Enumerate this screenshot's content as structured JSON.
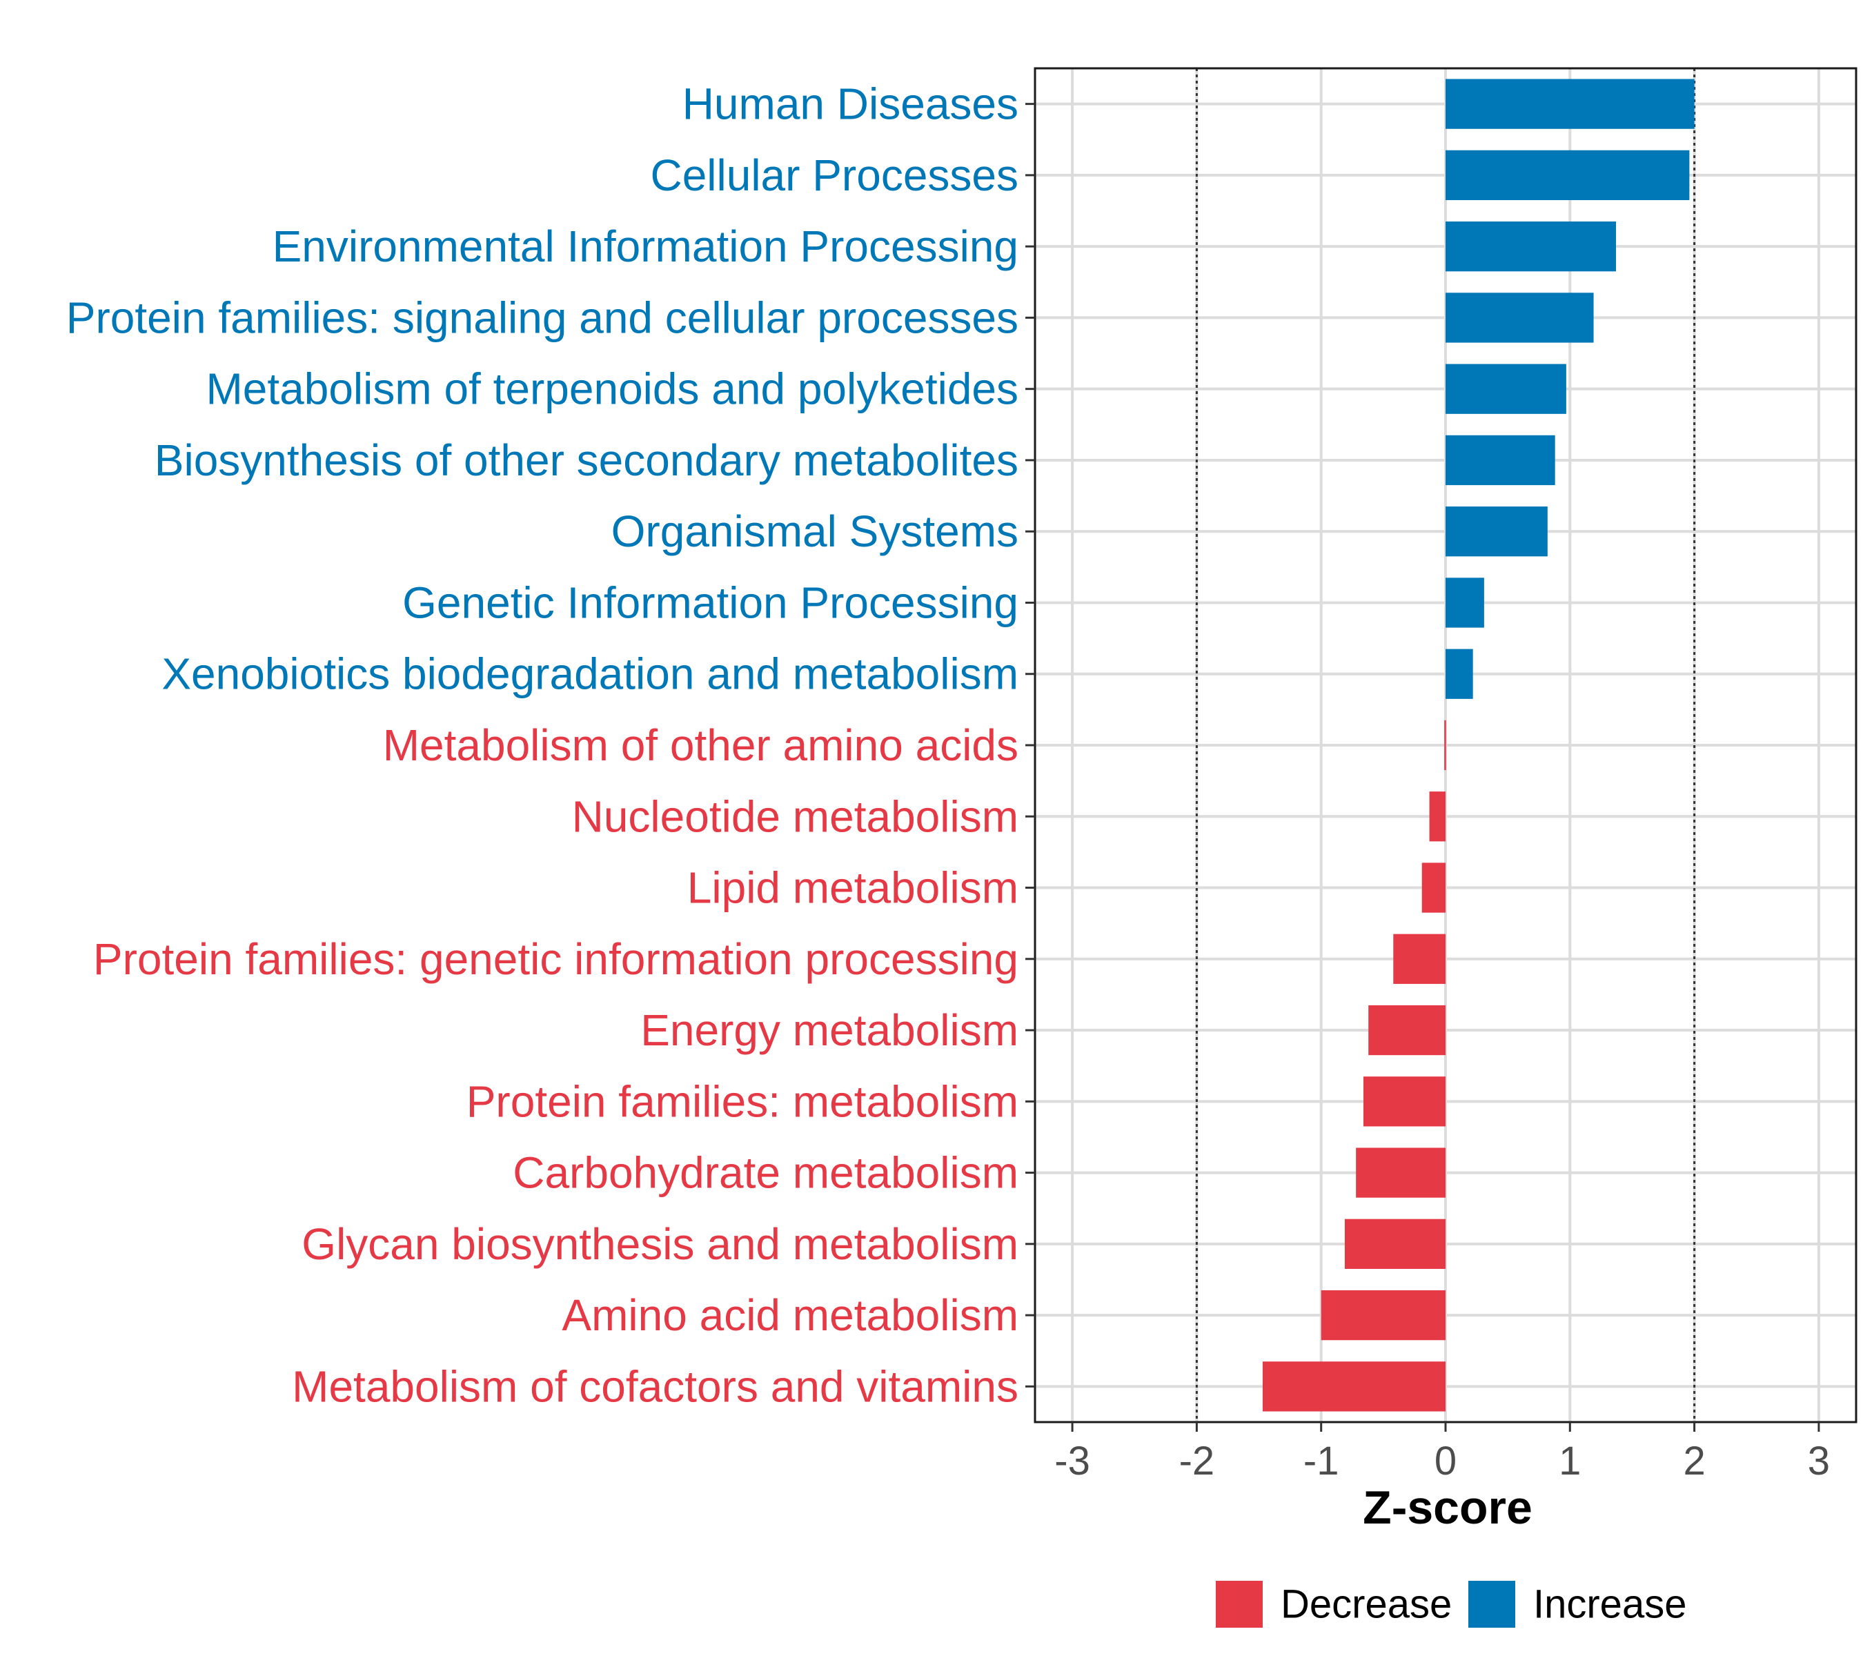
{
  "chart_data": {
    "type": "bar",
    "orientation": "horizontal",
    "title": "",
    "xlabel": "Z-score",
    "ylabel": "",
    "xlim": [
      -3.3,
      3.3
    ],
    "xticks": [
      -3,
      -2,
      -1,
      0,
      1,
      2,
      3
    ],
    "tick_labels": [
      "-3",
      "-2",
      "-1",
      "0",
      "1",
      "2",
      "3"
    ],
    "reference_lines": [
      -2,
      2
    ],
    "grid": true,
    "colors": {
      "Increase": "#0077b6",
      "Decrease": "#e63946"
    },
    "legend": {
      "position": "bottom",
      "entries": [
        "Decrease",
        "Increase"
      ]
    },
    "categories": [
      "Human Diseases",
      "Cellular Processes",
      "Environmental Information Processing",
      "Protein families: signaling and cellular processes",
      "Metabolism of terpenoids and polyketides",
      "Biosynthesis of other secondary metabolites",
      "Organismal Systems",
      "Genetic Information Processing",
      "Xenobiotics biodegradation and metabolism",
      "Metabolism of other amino acids",
      "Nucleotide metabolism",
      "Lipid metabolism",
      "Protein families: genetic information processing",
      "Energy metabolism",
      "Protein families: metabolism",
      "Carbohydrate metabolism",
      "Glycan biosynthesis and metabolism",
      "Amino acid metabolism",
      "Metabolism of cofactors and vitamins"
    ],
    "values": [
      2.0,
      1.96,
      1.37,
      1.19,
      0.97,
      0.88,
      0.82,
      0.31,
      0.22,
      -0.01,
      -0.13,
      -0.19,
      -0.42,
      -0.62,
      -0.66,
      -0.72,
      -0.81,
      -1.0,
      -1.47
    ],
    "groups": [
      "Increase",
      "Increase",
      "Increase",
      "Increase",
      "Increase",
      "Increase",
      "Increase",
      "Increase",
      "Increase",
      "Decrease",
      "Decrease",
      "Decrease",
      "Decrease",
      "Decrease",
      "Decrease",
      "Decrease",
      "Decrease",
      "Decrease",
      "Decrease"
    ]
  }
}
